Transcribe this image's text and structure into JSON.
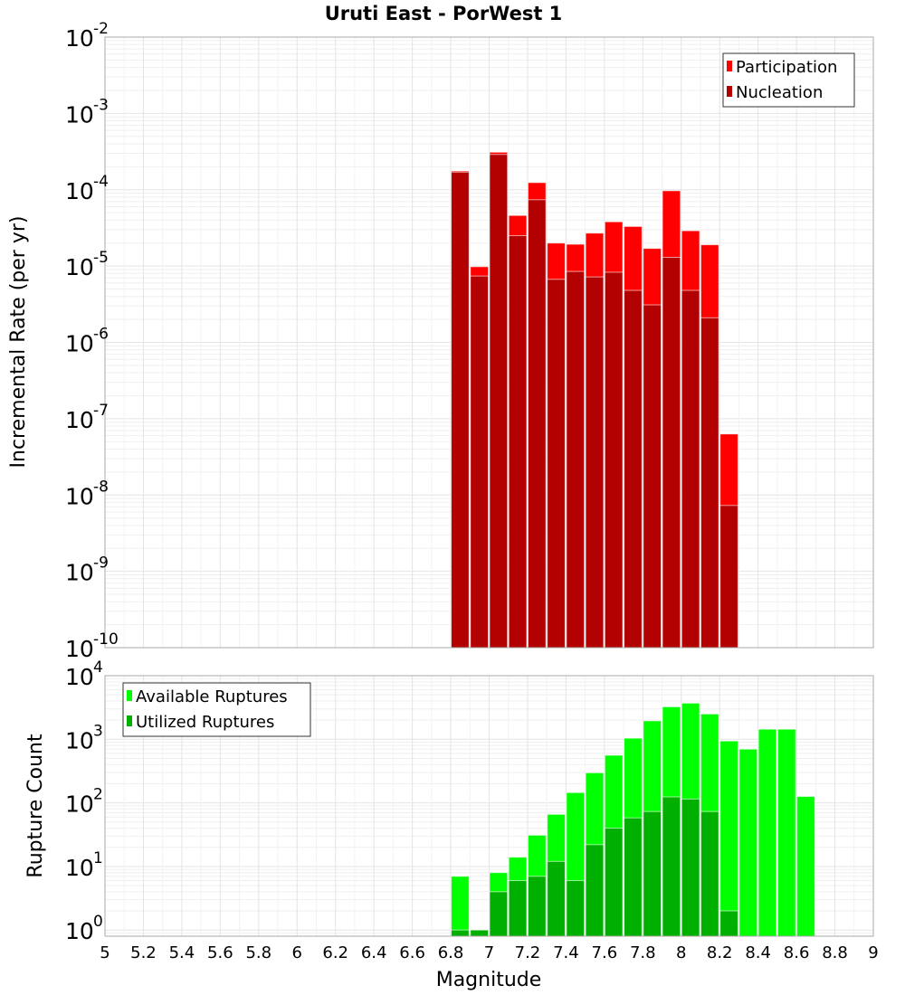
{
  "chart_data": [
    {
      "type": "bar",
      "title": "Uruti East - PorWest 1",
      "xlabel": "Magnitude",
      "ylabel": "Incremental Rate (per yr)",
      "yscale": "log",
      "xlim": [
        5,
        9
      ],
      "ylim": [
        1e-10,
        0.01
      ],
      "bin_width": 0.1,
      "legend_position": "top-right",
      "x": [
        6.85,
        6.95,
        7.05,
        7.15,
        7.25,
        7.35,
        7.45,
        7.55,
        7.65,
        7.75,
        7.85,
        7.95,
        8.05,
        8.15,
        8.25
      ],
      "series": [
        {
          "name": "Participation",
          "color": "#ff0000",
          "values": [
            0.000176,
            9.8e-06,
            0.00031,
            4.6e-05,
            0.000124,
            2e-05,
            1.93e-05,
            2.7e-05,
            3.8e-05,
            3.3e-05,
            1.7e-05,
            9.7e-05,
            2.9e-05,
            1.9e-05,
            6.3e-08
          ]
        },
        {
          "name": "Nucleation",
          "color": "#b30000",
          "values": [
            0.00017,
            7.4e-06,
            0.00029,
            2.5e-05,
            7.4e-05,
            6.7e-06,
            8.5e-06,
            7.2e-06,
            8.3e-06,
            4.8e-06,
            3.1e-06,
            1.3e-05,
            4.8e-06,
            2.1e-06,
            7.3e-09
          ]
        }
      ],
      "ytick_exponents": [
        "-2",
        "-3",
        "-4",
        "-5",
        "-6",
        "-7",
        "-8",
        "-9",
        "-10"
      ]
    },
    {
      "type": "bar",
      "xlabel": "Magnitude",
      "ylabel": "Rupture Count",
      "yscale": "log",
      "xlim": [
        5,
        9
      ],
      "ylim": [
        0.8,
        10000
      ],
      "bin_width": 0.1,
      "legend_position": "top-left",
      "x": [
        6.85,
        6.95,
        7.05,
        7.15,
        7.25,
        7.35,
        7.45,
        7.55,
        7.65,
        7.75,
        7.85,
        7.95,
        8.05,
        8.15,
        8.25,
        8.35,
        8.45,
        8.55,
        8.65
      ],
      "series": [
        {
          "name": "Available Ruptures",
          "color": "#00ff00",
          "values": [
            7,
            1,
            8,
            14,
            31,
            66,
            145,
            297,
            560,
            1040,
            1950,
            3240,
            3700,
            2500,
            940,
            700,
            1440,
            1440,
            126
          ]
        },
        {
          "name": "Utilized Ruptures",
          "color": "#00b000",
          "values": [
            1,
            1,
            4,
            6,
            7,
            12,
            6,
            22,
            40,
            58,
            73,
            124,
            115,
            73,
            2,
            0,
            0,
            0,
            0
          ]
        }
      ],
      "ytick_exponents": [
        "4",
        "3",
        "2",
        "1",
        "0"
      ],
      "xticks": [
        "5",
        "5.2",
        "5.4",
        "5.6",
        "5.8",
        "6",
        "6.2",
        "6.4",
        "6.6",
        "6.8",
        "7",
        "7.2",
        "7.4",
        "7.6",
        "7.8",
        "8",
        "8.2",
        "8.4",
        "8.6",
        "8.8",
        "9"
      ]
    }
  ]
}
